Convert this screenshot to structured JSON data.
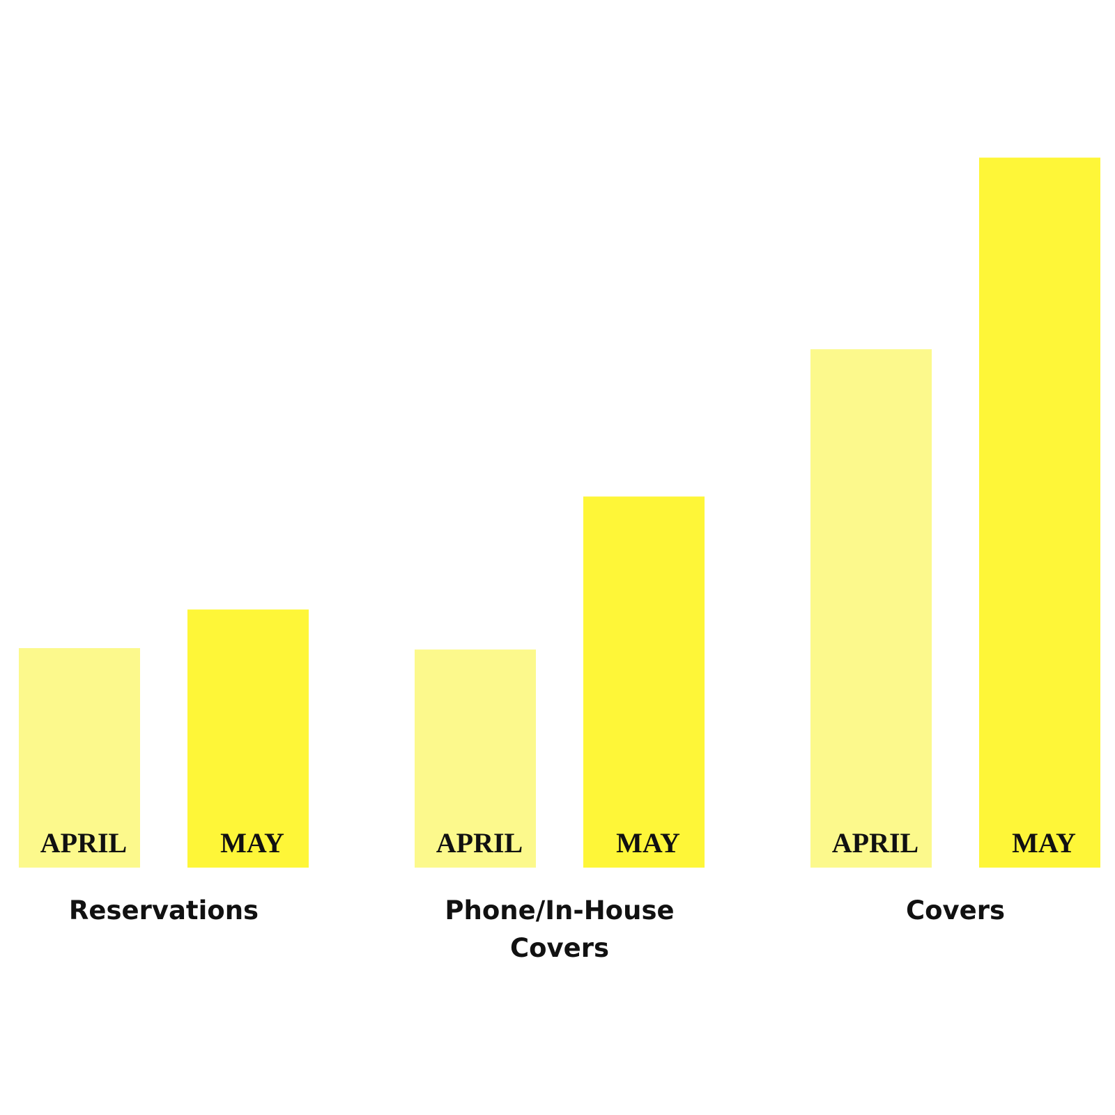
{
  "chart_data": {
    "type": "bar",
    "categories": [
      "Reservations",
      "Phone/In-House Covers",
      "Covers"
    ],
    "series": [
      {
        "name": "APRIL",
        "color": "#fcf98c",
        "values": [
          307,
          305,
          725
        ]
      },
      {
        "name": "MAY",
        "color": "#fef638",
        "values": [
          361,
          519,
          993
        ]
      }
    ],
    "ylim": [
      0,
      1000
    ]
  }
}
